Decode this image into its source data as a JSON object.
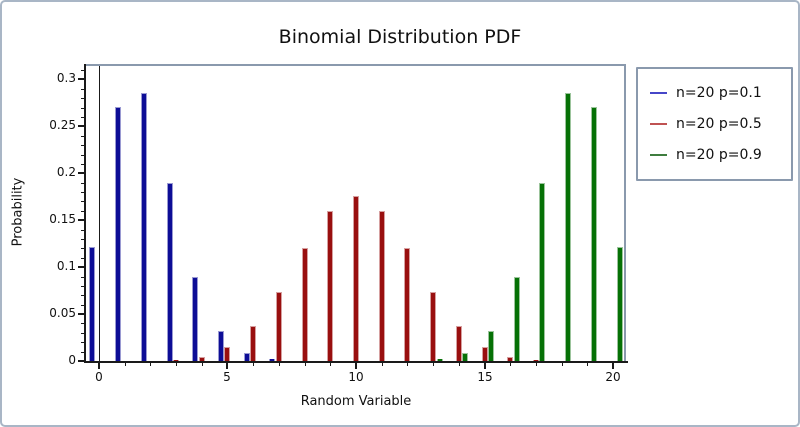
{
  "figure": {
    "title": "Binomial Distribution PDF"
  },
  "chart_data": {
    "type": "bar",
    "title": "Binomial Distribution PDF",
    "xlabel": "Random Variable",
    "ylabel": "Probability",
    "xlim": [
      -0.5,
      20.5
    ],
    "ylim": [
      0,
      0.3165
    ],
    "grid": false,
    "legend_position": "outside-right-top",
    "x": [
      0,
      1,
      2,
      3,
      4,
      5,
      6,
      7,
      8,
      9,
      10,
      11,
      12,
      13,
      14,
      15,
      16,
      17,
      18,
      19,
      20
    ],
    "x_major_ticks": {
      "values": [
        0,
        5,
        10,
        15,
        20
      ],
      "labels": [
        "0",
        "5",
        "10",
        "15",
        "20"
      ]
    },
    "x_minor_step": 1,
    "y_major_ticks": {
      "values": [
        0,
        0.05,
        0.1,
        0.15,
        0.2,
        0.25,
        0.3
      ],
      "labels": [
        "0",
        "0.05",
        "0.1",
        "0.15",
        "0.2",
        "0.25",
        "0.3"
      ]
    },
    "y_minor_step": 0.01,
    "zero_line_x": 0,
    "bar_group": {
      "offsets": [
        -0.25,
        0,
        0.25
      ],
      "bar_width": 0.23
    },
    "series": [
      {
        "name": "n=20 p=0.1",
        "color": "#0d0d96",
        "edge_color": "#9a9ad2",
        "legend_line_color": "#4646c8",
        "values": [
          0.1216,
          0.2702,
          0.2852,
          0.1901,
          0.0898,
          0.0319,
          0.0089,
          0.002,
          0.0004,
          0.0001,
          0,
          0,
          0,
          0,
          0,
          0,
          0,
          0,
          0,
          0,
          0
        ]
      },
      {
        "name": "n=20 p=0.5",
        "color": "#990f0f",
        "edge_color": "#d6a0a0",
        "legend_line_color": "#bf5252",
        "values": [
          0,
          0,
          0.0002,
          0.0011,
          0.0046,
          0.0148,
          0.037,
          0.0739,
          0.1201,
          0.1602,
          0.1762,
          0.1602,
          0.1201,
          0.0739,
          0.037,
          0.0148,
          0.0046,
          0.0011,
          0.0002,
          0,
          0
        ]
      },
      {
        "name": "n=20 p=0.9",
        "color": "#067106",
        "edge_color": "#9cc49c",
        "legend_line_color": "#3f7d3f",
        "values": [
          0,
          0,
          0,
          0,
          0,
          0,
          0,
          0,
          0,
          0,
          0,
          0.0001,
          0.0004,
          0.002,
          0.0089,
          0.0319,
          0.0898,
          0.1901,
          0.2852,
          0.2702,
          0.1216
        ]
      }
    ]
  },
  "colors": {
    "figure_border": "#a9b6c6",
    "axis_dark": "#1a1a1a",
    "axis_light": "#8a99ad",
    "background": "#ffffff",
    "text": "#111111"
  }
}
